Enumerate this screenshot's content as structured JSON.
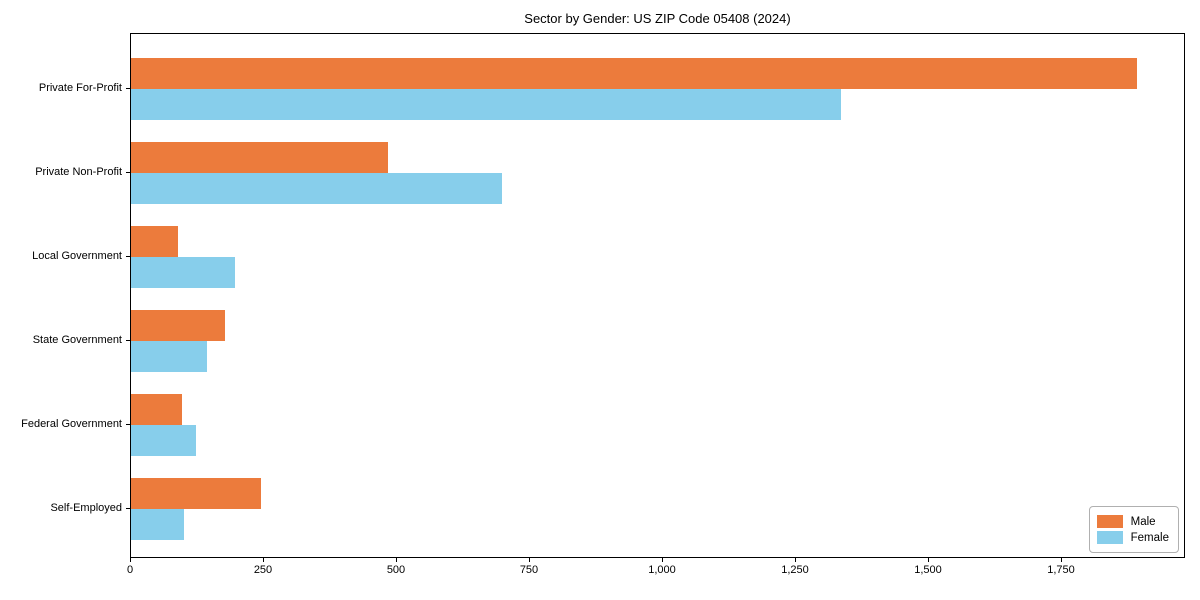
{
  "title": "Sector by Gender: US ZIP Code 05408 (2024)",
  "chart_data": {
    "type": "bar",
    "orientation": "horizontal",
    "title": "Sector by Gender: US ZIP Code 05408 (2024)",
    "xlabel": "",
    "ylabel": "",
    "categories": [
      "Private For-Profit",
      "Private Non-Profit",
      "Local Government",
      "State Government",
      "Federal Government",
      "Self-Employed"
    ],
    "series": [
      {
        "name": "Male",
        "color": "#EC7B3C",
        "values": [
          1890,
          483,
          89,
          177,
          95,
          244
        ]
      },
      {
        "name": "Female",
        "color": "#87CEEB",
        "values": [
          1335,
          698,
          196,
          142,
          123,
          100
        ]
      }
    ],
    "xlim": [
      0,
      1983
    ],
    "xticks": [
      0,
      250,
      500,
      750,
      1000,
      1250,
      1500,
      1750
    ],
    "xtick_labels": [
      "0",
      "250",
      "500",
      "750",
      "1,000",
      "1,250",
      "1,500",
      "1,750"
    ],
    "grid": false,
    "legend_position": "lower right"
  },
  "legend": {
    "items": [
      {
        "label": "Male",
        "color": "#EC7B3C"
      },
      {
        "label": "Female",
        "color": "#87CEEB"
      }
    ]
  }
}
